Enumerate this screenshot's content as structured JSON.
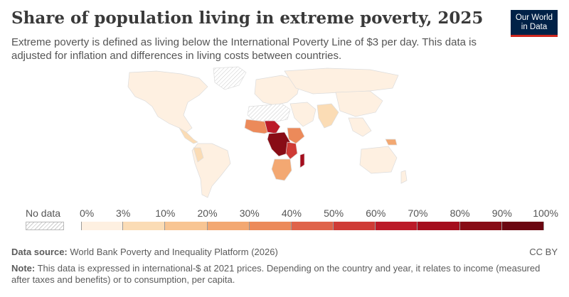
{
  "header": {
    "title": "Share of population living in extreme poverty, 2025",
    "subtitle": "Extreme poverty is defined as living below the International Poverty Line of $3 per day. This data is adjusted for inflation and differences in living costs between countries."
  },
  "logo": {
    "line1": "Our World",
    "line2": "in Data",
    "bg": "#002147",
    "accent": "#ce261e"
  },
  "legend": {
    "no_data_label": "No data",
    "ticks": [
      "0%",
      "3%",
      "10%",
      "20%",
      "30%",
      "40%",
      "50%",
      "60%",
      "70%",
      "80%",
      "90%",
      "100%"
    ],
    "colors": [
      "#fef0e1",
      "#fbdcb5",
      "#f8c593",
      "#f3a872",
      "#ec8a5a",
      "#df634a",
      "#cf3b36",
      "#bb1a28",
      "#a40d1d",
      "#880c16",
      "#6b0711"
    ]
  },
  "footer": {
    "source_label": "Data source:",
    "source_text": "World Bank Poverty and Inequality Platform (2026)",
    "license": "CC BY",
    "note_label": "Note:",
    "note_text": "This data is expressed in international-$ at 2021 prices. Depending on the country and year, it relates to income (measured after taxes and benefits) or to consumption, per capita."
  }
}
